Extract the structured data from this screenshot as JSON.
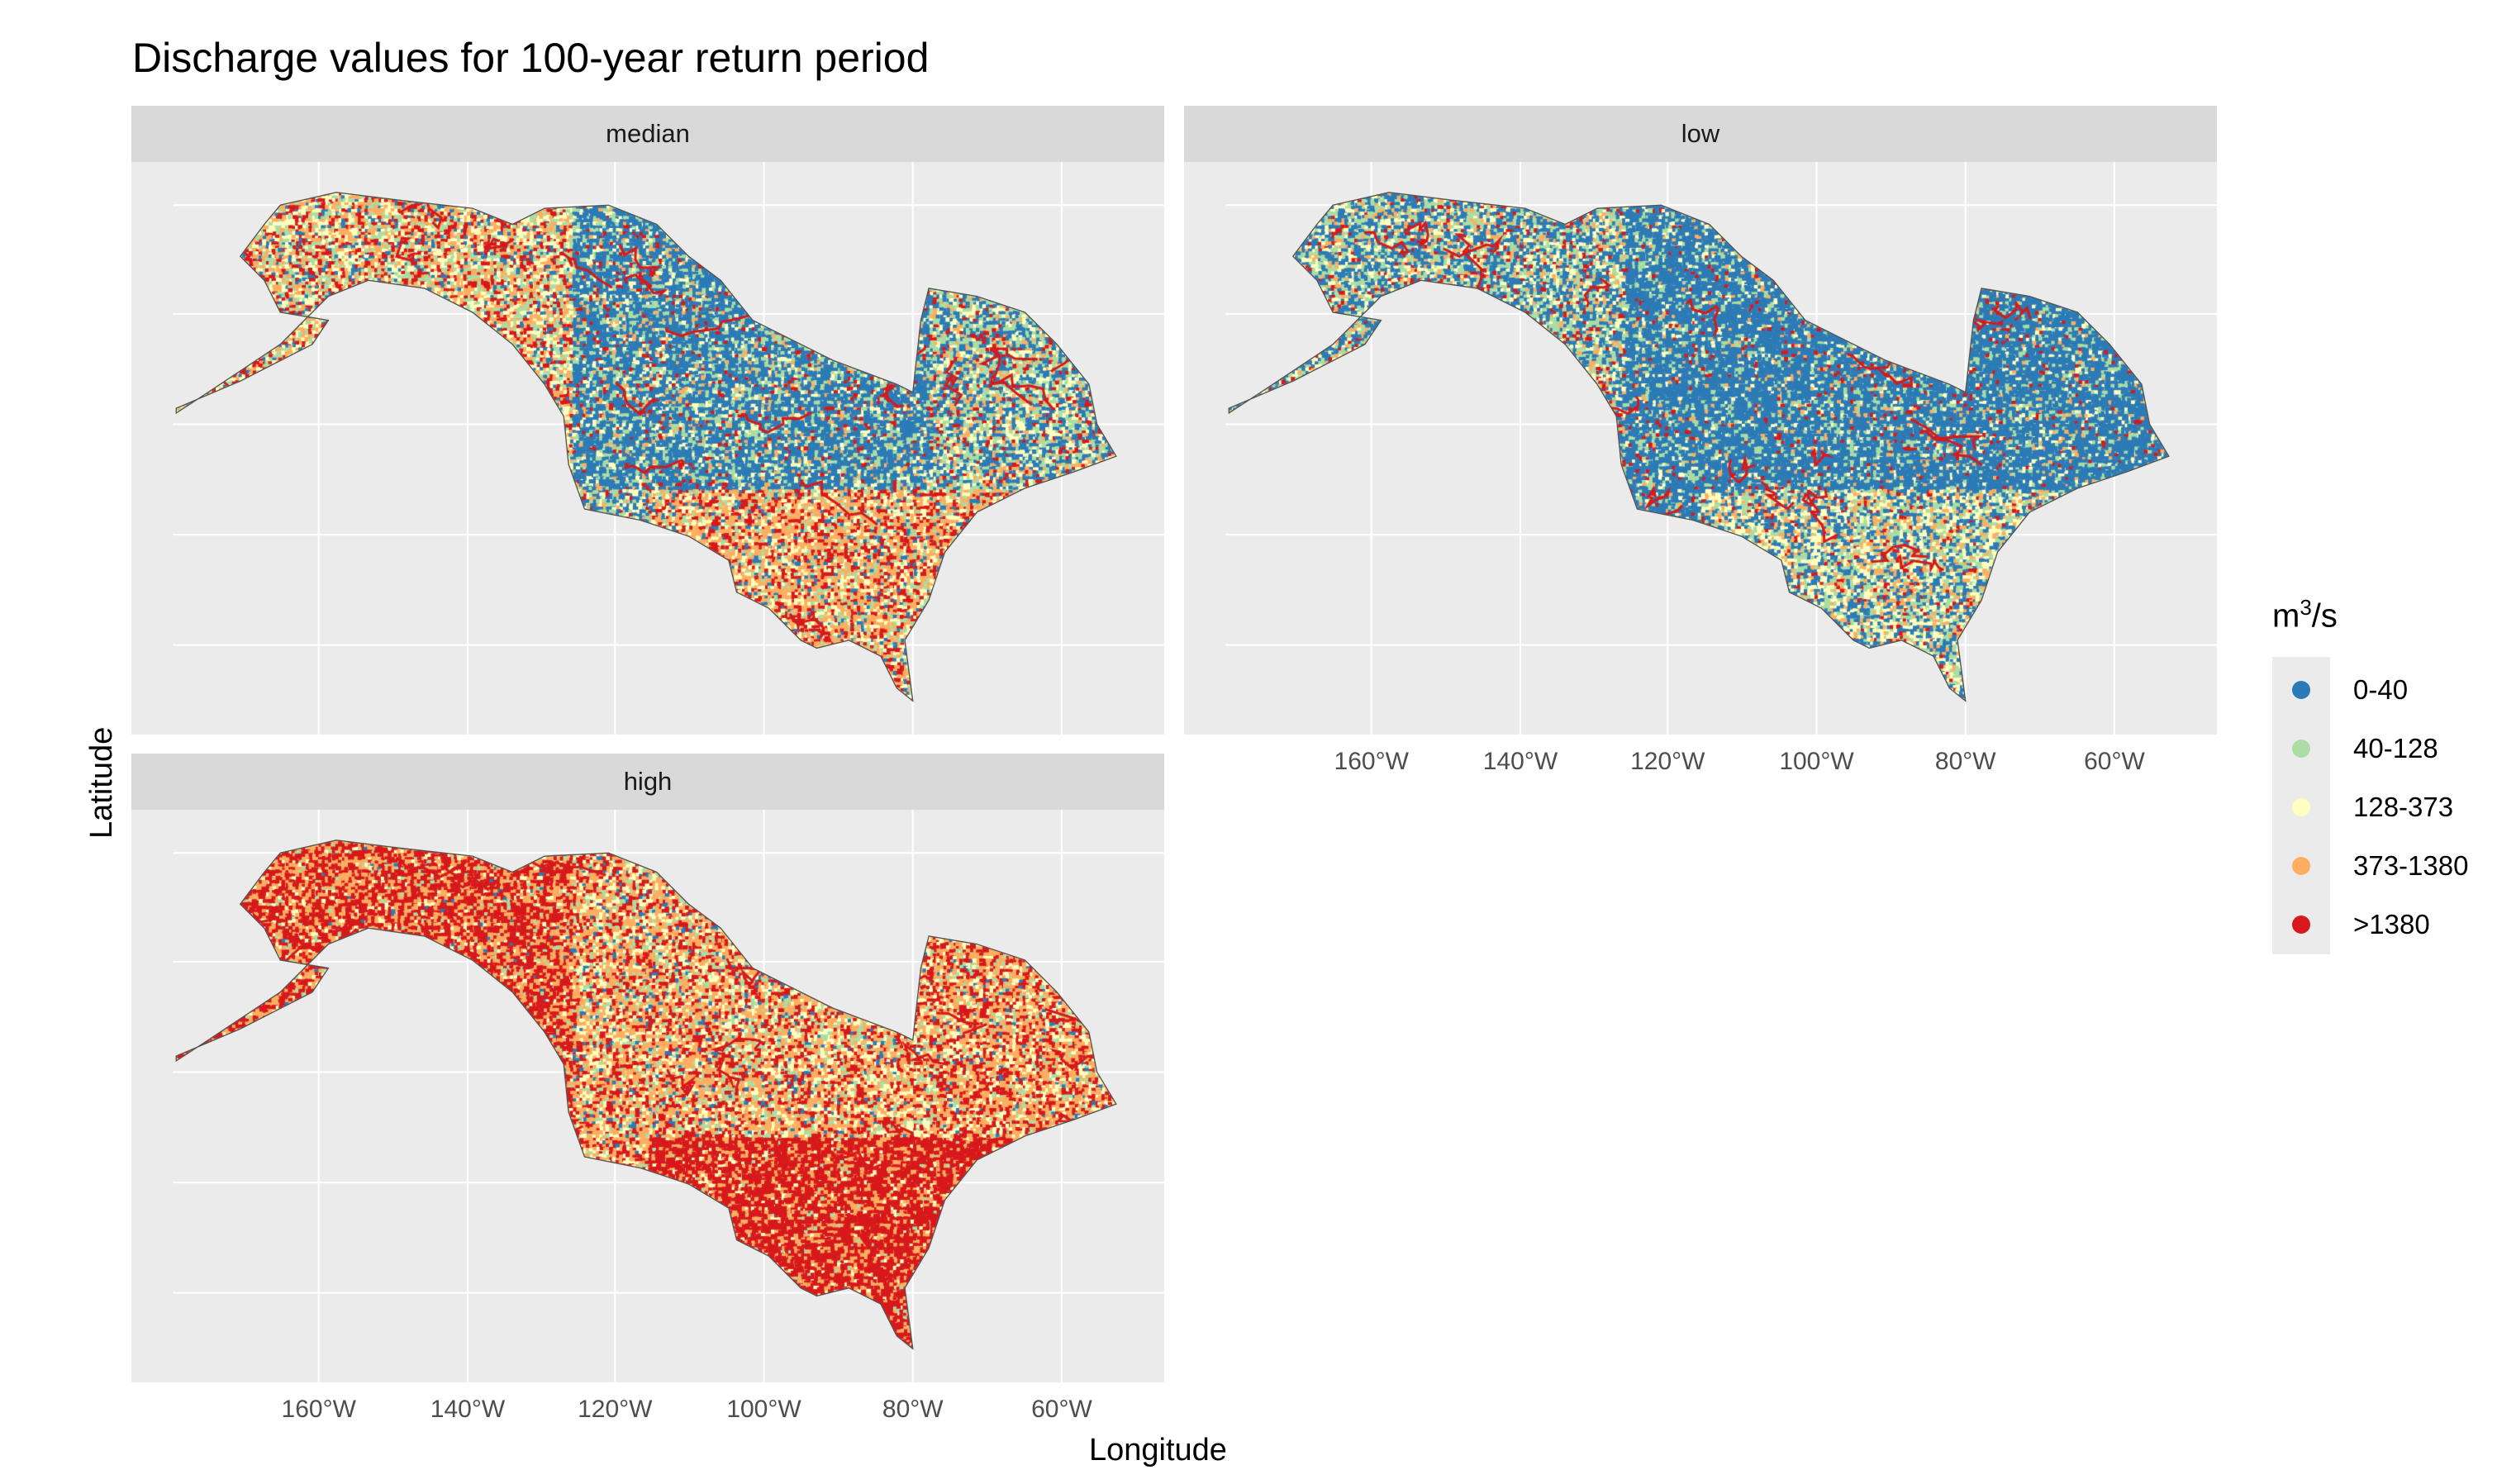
{
  "chart_data": {
    "type": "map",
    "title": "Discharge values for 100-year return period",
    "xlabel": "Longitude",
    "ylabel": "Latitude",
    "x_tick_labels": [
      "160°W",
      "140°W",
      "120°W",
      "100°W",
      "80°W",
      "60°W"
    ],
    "grid": true,
    "facets": [
      {
        "label": "median",
        "dominant": "mixed: blue in central Canada, orange/red in southeastern US, red/orange/yellow in Alaska"
      },
      {
        "label": "low",
        "dominant": "mostly 0-40 (blue), yellow/orange in southeastern US"
      },
      {
        "label": "high",
        "dominant": "mostly >1380 (red) and 373-1380 (orange)"
      }
    ],
    "legend": {
      "title_base": "m",
      "title_sup": "3",
      "title_rest": "/s",
      "placement": "right",
      "classes": [
        {
          "label": "0-40",
          "color": "#2C7BB6"
        },
        {
          "label": "40-128",
          "color": "#ABDDA4"
        },
        {
          "label": "128-373",
          "color": "#FFFFBF"
        },
        {
          "label": "373-1380",
          "color": "#FDAE61"
        },
        {
          "label": ">1380",
          "color": "#D7191C"
        }
      ]
    }
  }
}
